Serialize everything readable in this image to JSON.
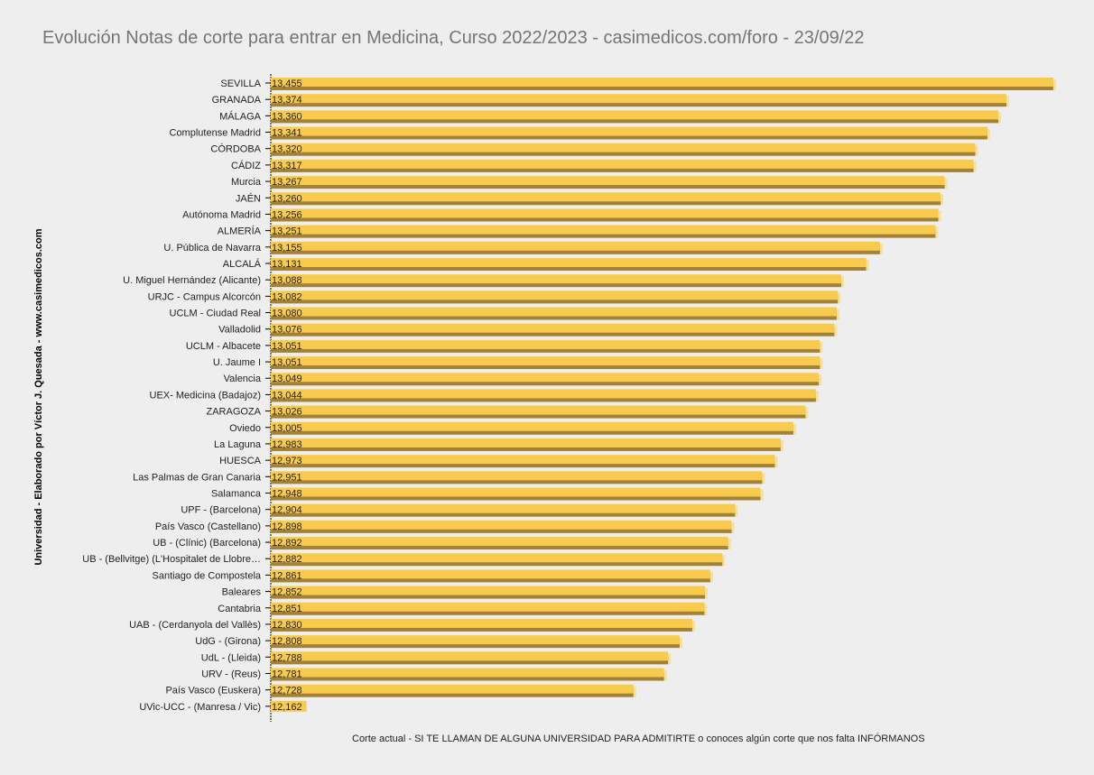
{
  "chart_data": {
    "type": "bar",
    "orientation": "horizontal",
    "title": "Evolución Notas de corte para entrar en Medicina, Curso 2022/2023 - casimedicos.com/foro - 23/09/22",
    "xlabel": "Corte actual - SI TE LLAMAN DE ALGUNA UNIVERSIDAD PARA ADMITIRTE o conoces algún corte que nos falta INFÓRMANOS",
    "ylabel": "Universidad  - Elaborado por Víctor J. Quesada - www.casimedicos.com",
    "xlim": [
      12.1,
      13.46
    ],
    "grid": false,
    "colors": {
      "bar": "#f8cb4f",
      "bar_shadow": "#a58232",
      "background": "#eeeeee"
    },
    "categories": [
      "SEVILLA",
      "GRANADA",
      "MÁLAGA",
      "Complutense Madrid",
      "CÓRDOBA",
      "CÁDIZ",
      "Murcia",
      "JAÉN",
      "Autónoma Madrid",
      "ALMERÍA",
      "U. Pública de Navarra",
      "ALCALÁ",
      "U. Miguel Hernández (Alicante)",
      "URJC - Campus Alcorcón",
      "UCLM - Ciudad Real",
      "Valladolid",
      "UCLM - Albacete",
      "U. Jaume I",
      "Valencia",
      "UEX- Medicina (Badajoz)",
      "ZARAGOZA",
      "Oviedo",
      "La Laguna",
      "HUESCA",
      "Las Palmas de Gran Canaria",
      "Salamanca",
      "UPF - (Barcelona)",
      "País Vasco (Castellano)",
      "UB - (Clínic) (Barcelona)",
      "UB - (Bellvitge) (L'Hospitalet de Llobre…",
      "Santiago de Compostela",
      "Baleares",
      "Cantabria",
      "UAB - (Cerdanyola del Vallès)",
      "UdG - (Girona)",
      "UdL - (Lleida)",
      "URV - (Reus)",
      "País Vasco (Euskera)",
      "UVic-UCC - (Manresa / Vic)"
    ],
    "values": [
      13.455,
      13.374,
      13.36,
      13.341,
      13.32,
      13.317,
      13.267,
      13.26,
      13.256,
      13.251,
      13.155,
      13.131,
      13.088,
      13.082,
      13.08,
      13.076,
      13.051,
      13.051,
      13.049,
      13.044,
      13.026,
      13.005,
      12.983,
      12.973,
      12.951,
      12.948,
      12.904,
      12.898,
      12.892,
      12.882,
      12.861,
      12.852,
      12.851,
      12.83,
      12.808,
      12.788,
      12.781,
      12.728,
      12.162
    ],
    "value_labels": [
      "13,455",
      "13,374",
      "13,360",
      "13,341",
      "13,320",
      "13,317",
      "13,267",
      "13,260",
      "13,256",
      "13,251",
      "13,155",
      "13,131",
      "13,088",
      "13,082",
      "13,080",
      "13,076",
      "13,051",
      "13,051",
      "13,049",
      "13,044",
      "13,026",
      "13,005",
      "12,983",
      "12,973",
      "12,951",
      "12,948",
      "12,904",
      "12,898",
      "12,892",
      "12,882",
      "12,861",
      "12,852",
      "12,851",
      "12,830",
      "12,808",
      "12,788",
      "12,781",
      "12,728",
      "12,162"
    ]
  }
}
